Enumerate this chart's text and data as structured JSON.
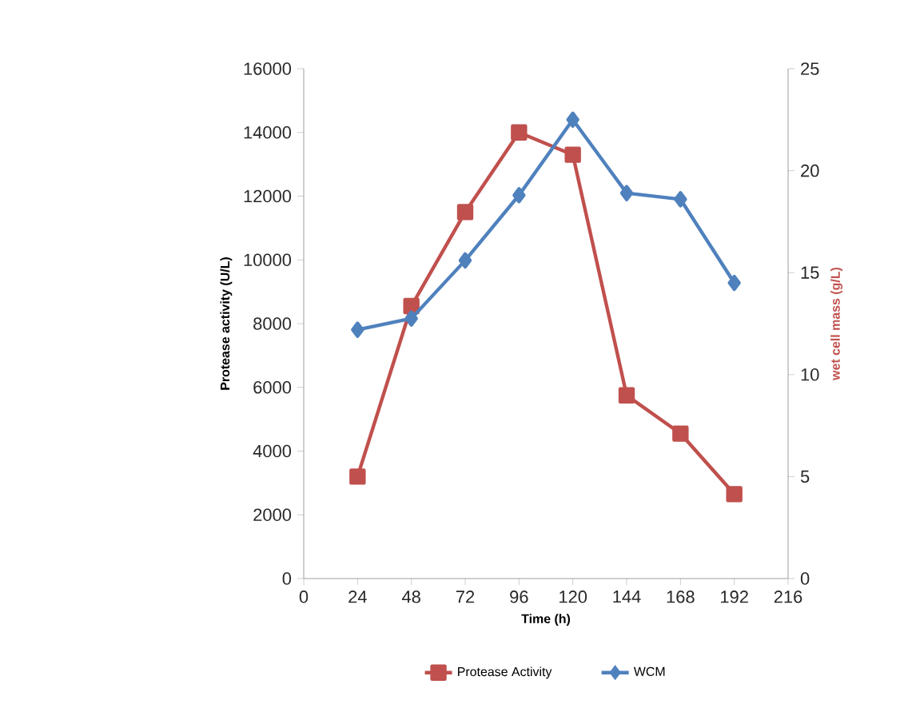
{
  "chart_data": {
    "type": "line",
    "xlabel": "Time (h)",
    "ylabel": "Protease activity (U/L)",
    "y2label": "wet cell mass (g/L)",
    "x": [
      24,
      48,
      72,
      96,
      120,
      144,
      168,
      192
    ],
    "xlim": [
      0,
      216
    ],
    "xticks": [
      0,
      24,
      48,
      72,
      96,
      120,
      144,
      168,
      192,
      216
    ],
    "ylim": [
      0,
      16000
    ],
    "yticks": [
      0,
      2000,
      4000,
      6000,
      8000,
      10000,
      12000,
      14000,
      16000
    ],
    "y2lim": [
      0,
      25
    ],
    "y2ticks": [
      0,
      5,
      10,
      15,
      20,
      25
    ],
    "grid": false,
    "legend": "bottom",
    "series": [
      {
        "name": "Protease Activity",
        "color": "#c0504d",
        "marker": "square",
        "values": [
          3200,
          8550,
          11500,
          14000,
          13300,
          5750,
          4550,
          2650
        ]
      },
      {
        "name": "WCM",
        "color": "#4f81bd",
        "marker": "diamond",
        "axis": "y2",
        "values": [
          12.2,
          12.75,
          15.6,
          18.8,
          22.5,
          18.9,
          18.6,
          14.5
        ]
      }
    ]
  }
}
